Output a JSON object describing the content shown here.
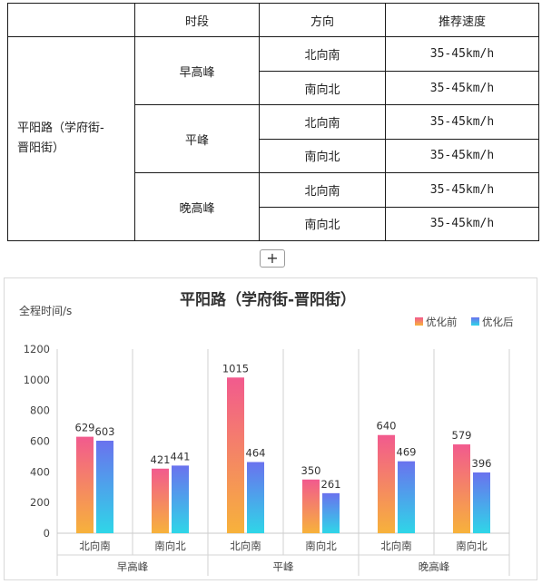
{
  "table": {
    "headers": [
      "",
      "时段",
      "方向",
      "推荐速度"
    ],
    "road": [
      "平阳路（学府街-",
      "晋阳街）"
    ],
    "groups": [
      {
        "period": "早高峰",
        "rows": [
          {
            "direction": "北向南",
            "speed": "35-45km/h"
          },
          {
            "direction": "南向北",
            "speed": "35-45km/h"
          }
        ]
      },
      {
        "period": "平峰",
        "rows": [
          {
            "direction": "北向南",
            "speed": "35-45km/h"
          },
          {
            "direction": "南向北",
            "speed": "35-45km/h"
          }
        ]
      },
      {
        "period": "晚高峰",
        "rows": [
          {
            "direction": "北向南",
            "speed": "35-45km/h"
          },
          {
            "direction": "南向北",
            "speed": "35-45km/h"
          }
        ]
      }
    ]
  },
  "add_button": {
    "label": "+"
  },
  "chart_data": {
    "type": "bar",
    "title": "平阳路（学府街-晋阳街）",
    "ylabel": "全程时间/s",
    "xlabel": "",
    "ylim": [
      0,
      1200
    ],
    "yticks": [
      0,
      200,
      400,
      600,
      800,
      1000,
      1200
    ],
    "grid": false,
    "legend_position": "top-right",
    "categories": [
      "北向南",
      "南向北",
      "北向南",
      "南向北",
      "北向南",
      "南向北"
    ],
    "groups": [
      "早高峰",
      "平峰",
      "晚高峰"
    ],
    "series": [
      {
        "name": "优化前",
        "values": [
          629,
          421,
          1015,
          350,
          640,
          579
        ],
        "gradient": [
          "#f25a8e",
          "#f7b23b"
        ]
      },
      {
        "name": "优化后",
        "values": [
          603,
          441,
          464,
          261,
          469,
          396
        ],
        "gradient": [
          "#6a72ee",
          "#2fd6e8"
        ]
      }
    ]
  }
}
